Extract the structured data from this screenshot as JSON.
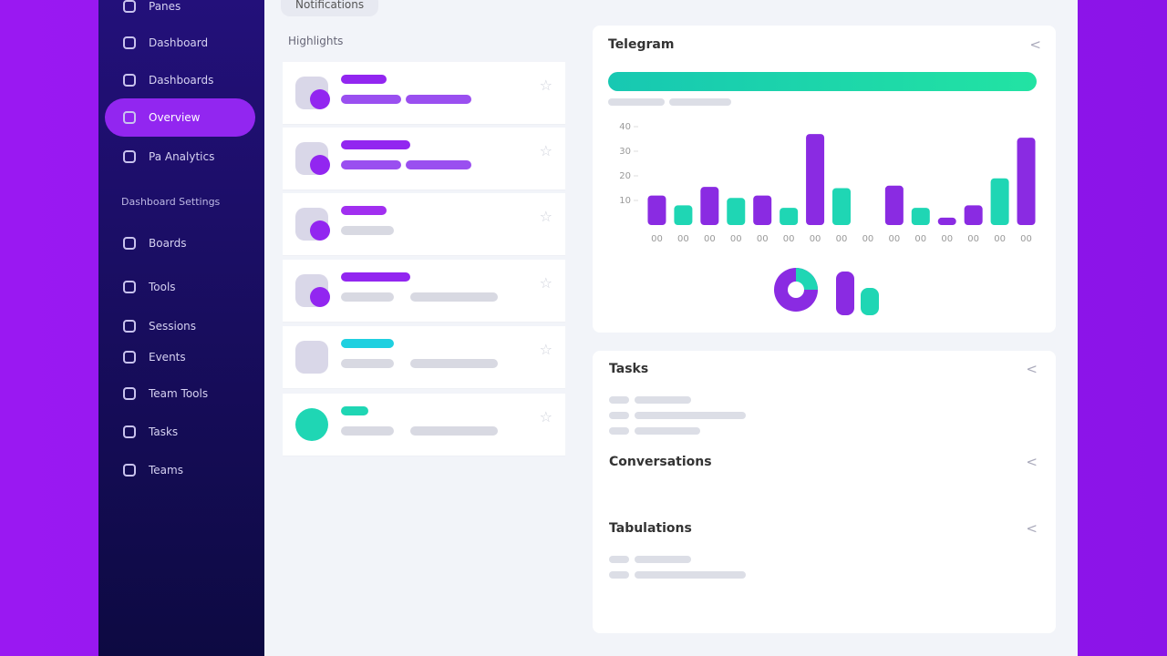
{
  "sidebar": {
    "items": [
      {
        "label": "Panes",
        "active": false
      },
      {
        "label": "Dashboard",
        "active": false
      },
      {
        "label": "Dashboards",
        "active": false
      },
      {
        "label": "Overview",
        "active": true
      },
      {
        "label": "Pa Analytics",
        "active": false
      }
    ],
    "section": "Dashboard Settings",
    "items2": [
      {
        "label": "Boards",
        "active": false
      },
      {
        "label": "Tools",
        "active": false
      },
      {
        "label": "Sessions",
        "active": false
      },
      {
        "label": "Events",
        "active": false
      },
      {
        "label": "Team Tools",
        "active": false
      },
      {
        "label": "Tasks",
        "active": false
      },
      {
        "label": "Teams",
        "active": false
      }
    ]
  },
  "header": {
    "tab": "Notifications"
  },
  "list": {
    "title": "Highlights"
  },
  "overview": {
    "title": "Telegram",
    "chart": {
      "type": "bar",
      "categories": [
        "00",
        "00",
        "00",
        "00",
        "00",
        "00",
        "00",
        "00",
        "00",
        "00",
        "00",
        "00",
        "00",
        "00",
        "00"
      ],
      "values": [
        12,
        8,
        15.5,
        11,
        12,
        7,
        37,
        15,
        null,
        16,
        7,
        3,
        8,
        19,
        35.5
      ],
      "colors": [
        "#8a2be2",
        "#1fd6b4",
        "#8a2be2",
        "#1fd6b4",
        "#8a2be2",
        "#1fd6b4",
        "#8a2be2",
        "#1fd6b4",
        "#8a2be2",
        "#8a2be2",
        "#1fd6b4",
        "#8a2be2",
        "#8a2be2",
        "#1fd6b4",
        "#8a2be2"
      ],
      "ylim": [
        0,
        40
      ],
      "yticks": [
        10,
        20,
        30,
        40
      ]
    }
  },
  "details": {
    "sections": [
      "Tasks",
      "Conversations",
      "Tabulations"
    ]
  }
}
